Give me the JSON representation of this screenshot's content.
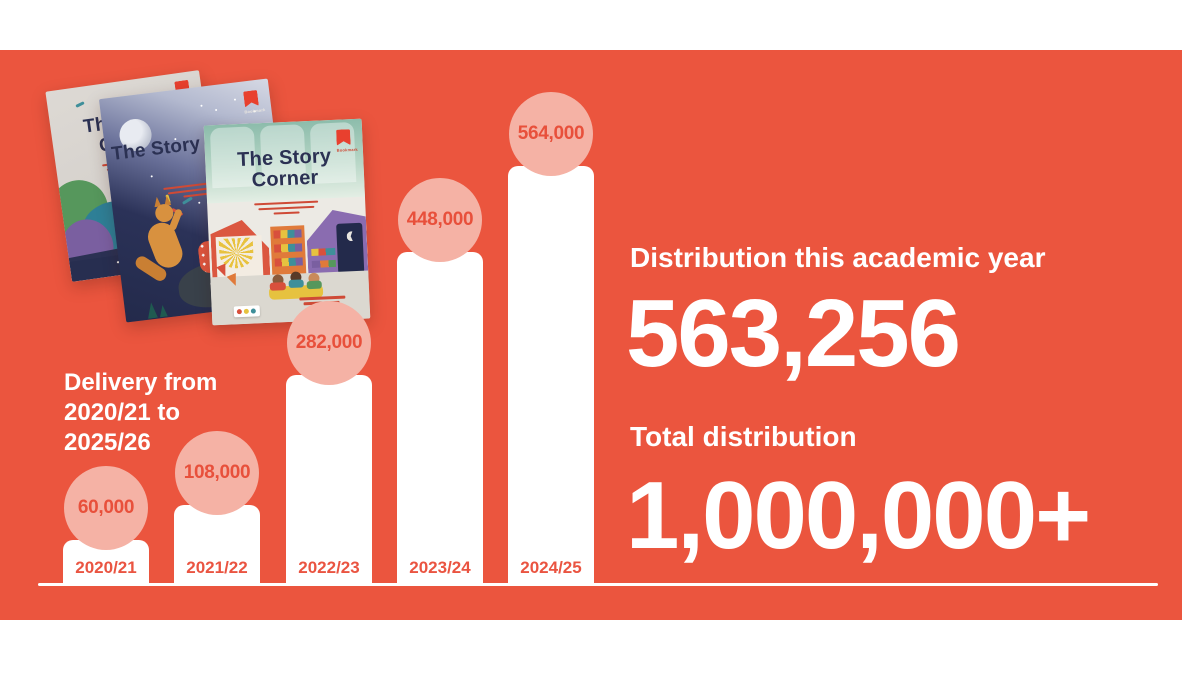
{
  "colors": {
    "panel_bg": "#eb553e",
    "bar_fill": "#ffffff",
    "bubble_fill": "#f5b2a5",
    "bubble_text": "#e8503b",
    "category_text": "#ea5441",
    "axis": "#ffffff",
    "stat_text": "#ffffff",
    "book_title_navy": "#2b3153",
    "logo_red": "#e8402e"
  },
  "books": [
    {
      "title": "The Story Corner",
      "logo": "Bookmark"
    },
    {
      "title": "The Story Corner",
      "logo": "Bookmark"
    },
    {
      "title": "The Story Corner",
      "logo": "Bookmark"
    }
  ],
  "chart_data": {
    "type": "bar",
    "title": "Delivery from 2020/21 to 2025/26",
    "title_lines": "Delivery from\n2020/21 to\n2025/26",
    "categories": [
      "2020/21",
      "2021/22",
      "2022/23",
      "2023/24",
      "2024/25"
    ],
    "values": [
      60000,
      108000,
      282000,
      448000,
      564000
    ],
    "value_labels": [
      "60,000",
      "108,000",
      "282,000",
      "448,000",
      "564,000"
    ],
    "ylim": [
      0,
      600000
    ],
    "xlabel": "",
    "ylabel": "",
    "grid": false,
    "legend": false,
    "bar_color": "#ffffff",
    "value_bubble_color": "#f5b2a5",
    "value_text_color": "#e8503b",
    "category_text_color": "#ea5441",
    "baseline_axis_color": "#ffffff"
  },
  "stats": {
    "label_academic": "Distribution this academic year",
    "value_academic": "563,256",
    "label_total": "Total distribution",
    "value_total": "1,000,000+"
  }
}
